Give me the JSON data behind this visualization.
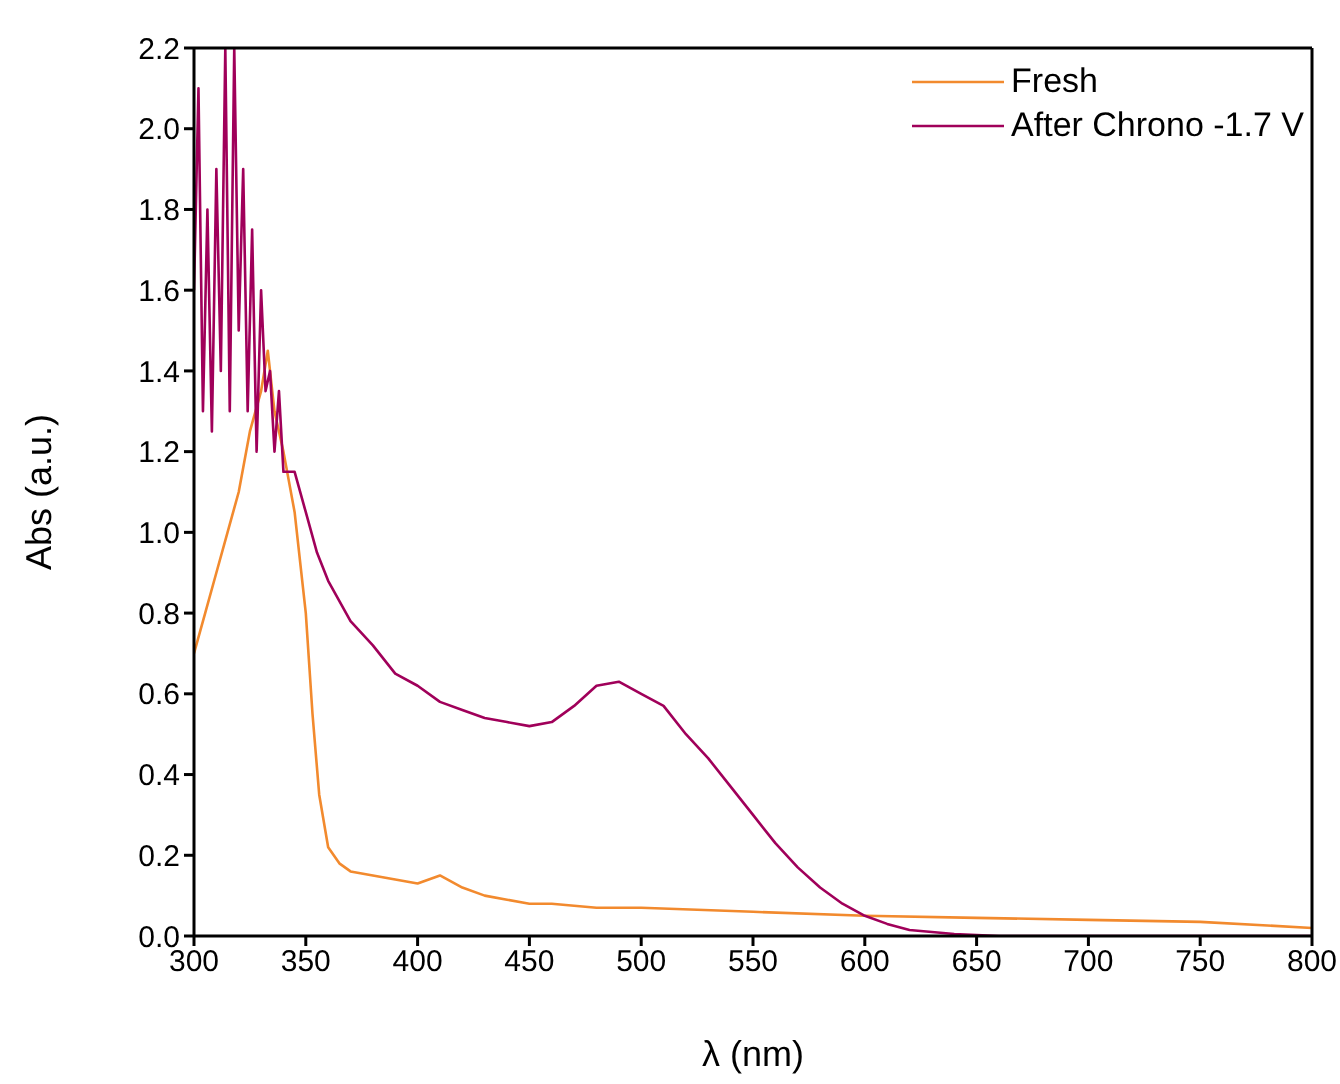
{
  "chart_data": {
    "type": "line",
    "xlabel": "λ (nm)",
    "ylabel": "Abs (a.u.)",
    "xlim": [
      300,
      800
    ],
    "xticks": [
      300,
      350,
      400,
      450,
      500,
      550,
      600,
      650,
      700,
      750,
      800
    ],
    "ylim": [
      0,
      2.2
    ],
    "yticks": [
      {
        "value": 0,
        "label": "0.0"
      },
      {
        "value": 0.2,
        "label": "0.2"
      },
      {
        "value": 0.4,
        "label": "0.4"
      },
      {
        "value": 0.6,
        "label": "0.6"
      },
      {
        "value": 0.8,
        "label": "0.8"
      },
      {
        "value": 1,
        "label": "1.0"
      },
      {
        "value": 1.2,
        "label": "1.2"
      },
      {
        "value": 1.4,
        "label": "1.4"
      },
      {
        "value": 1.6,
        "label": "1.6"
      },
      {
        "value": 1.8,
        "label": "1.8"
      },
      {
        "value": 2,
        "label": "2.0"
      },
      {
        "value": 2.2,
        "label": "2.2"
      }
    ],
    "legend": "top right",
    "marker": "none",
    "line_style": "solid",
    "series": [
      {
        "name": "Fresh",
        "color": "#f28a2e",
        "x": [
          300,
          305,
          310,
          315,
          320,
          325,
          330,
          333,
          336,
          340,
          345,
          350,
          353,
          356,
          360,
          365,
          370,
          380,
          390,
          400,
          410,
          420,
          430,
          440,
          450,
          460,
          480,
          500,
          550,
          600,
          650,
          700,
          750,
          800
        ],
        "values": [
          0.7,
          0.8,
          0.9,
          1.0,
          1.1,
          1.25,
          1.35,
          1.45,
          1.3,
          1.2,
          1.05,
          0.8,
          0.55,
          0.35,
          0.22,
          0.18,
          0.16,
          0.15,
          0.14,
          0.13,
          0.15,
          0.12,
          0.1,
          0.09,
          0.08,
          0.08,
          0.07,
          0.07,
          0.06,
          0.05,
          0.045,
          0.04,
          0.035,
          0.02
        ]
      },
      {
        "name": "After Chrono -1.7 V",
        "color": "#a0005a",
        "x": [
          300,
          302,
          304,
          306,
          308,
          310,
          312,
          314,
          316,
          318,
          320,
          322,
          324,
          326,
          328,
          330,
          332,
          334,
          336,
          338,
          340,
          345,
          350,
          355,
          360,
          370,
          380,
          390,
          400,
          410,
          420,
          430,
          440,
          450,
          460,
          470,
          480,
          490,
          500,
          510,
          520,
          530,
          540,
          550,
          560,
          570,
          580,
          590,
          600,
          610,
          620,
          640,
          660,
          700,
          800
        ],
        "values": [
          1.6,
          2.1,
          1.3,
          1.8,
          1.25,
          1.9,
          1.4,
          2.2,
          1.3,
          2.2,
          1.5,
          1.9,
          1.3,
          1.75,
          1.2,
          1.6,
          1.35,
          1.4,
          1.2,
          1.35,
          1.15,
          1.15,
          1.05,
          0.95,
          0.88,
          0.78,
          0.72,
          0.65,
          0.62,
          0.58,
          0.56,
          0.54,
          0.53,
          0.52,
          0.53,
          0.57,
          0.62,
          0.63,
          0.6,
          0.57,
          0.5,
          0.44,
          0.37,
          0.3,
          0.23,
          0.17,
          0.12,
          0.08,
          0.05,
          0.03,
          0.015,
          0.005,
          0,
          0,
          0
        ]
      }
    ]
  }
}
